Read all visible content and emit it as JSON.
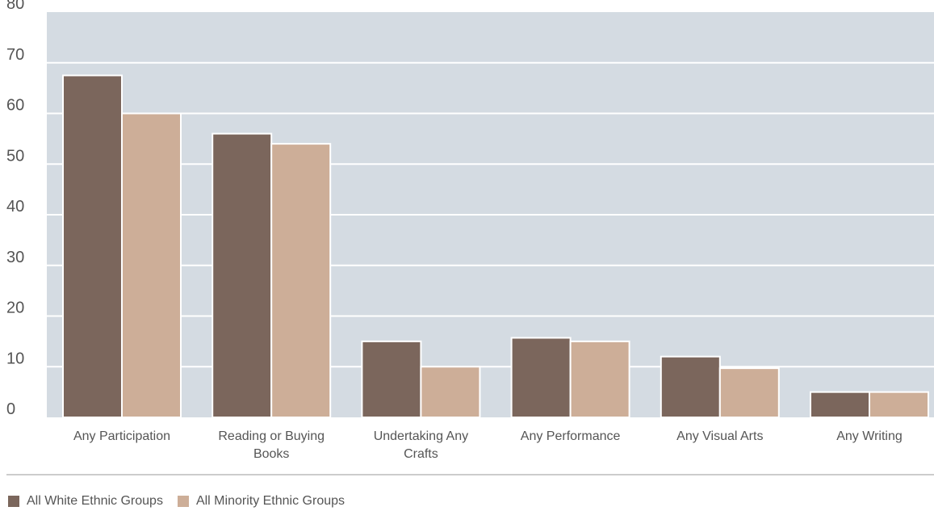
{
  "chart_data": {
    "type": "bar",
    "categories": [
      [
        "Any Participation"
      ],
      [
        "Reading or Buying",
        "Books"
      ],
      [
        "Undertaking Any",
        "Crafts"
      ],
      [
        "Any Performance"
      ],
      [
        "Any Visual Arts"
      ],
      [
        "Any Writing"
      ]
    ],
    "series": [
      {
        "name": "All White Ethnic Groups",
        "color": "#7b665c",
        "values": [
          67.5,
          56,
          15,
          15.7,
          12,
          5
        ]
      },
      {
        "name": "All Minority Ethnic Groups",
        "color": "#cdae98",
        "values": [
          60,
          54,
          10,
          15,
          9.7,
          5
        ]
      }
    ],
    "ylim": [
      0,
      80
    ],
    "yticks": [
      0,
      10,
      20,
      30,
      40,
      50,
      60,
      70,
      80
    ],
    "grid": true,
    "plot_background": "#d4dbe2",
    "legend_position": "bottom-left"
  }
}
